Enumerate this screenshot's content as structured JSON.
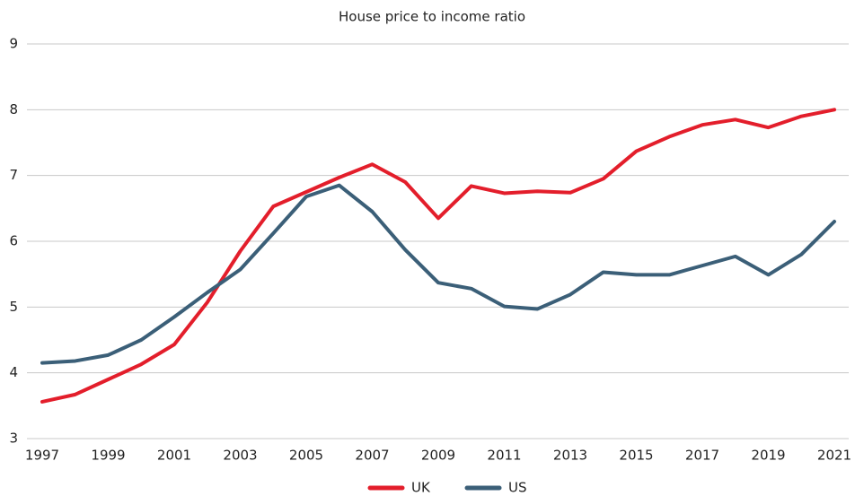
{
  "chart_data": {
    "type": "line",
    "title": "House price to income ratio",
    "x": [
      1997,
      1998,
      1999,
      2000,
      2001,
      2002,
      2003,
      2004,
      2005,
      2006,
      2007,
      2008,
      2009,
      2010,
      2011,
      2012,
      2013,
      2014,
      2015,
      2016,
      2017,
      2018,
      2019,
      2020,
      2021
    ],
    "xlim": [
      1997,
      2021
    ],
    "xticks": [
      1997,
      1999,
      2001,
      2003,
      2005,
      2007,
      2009,
      2011,
      2013,
      2015,
      2017,
      2019,
      2021
    ],
    "ylim": [
      3,
      9
    ],
    "yticks": [
      3,
      4,
      5,
      6,
      7,
      8,
      9
    ],
    "grid": true,
    "legend": "bottom",
    "series": [
      {
        "name": "UK",
        "color": "#e31e2b",
        "values": [
          3.56,
          3.67,
          3.9,
          4.13,
          4.43,
          5.07,
          5.85,
          6.53,
          6.75,
          6.97,
          7.17,
          6.9,
          6.35,
          6.84,
          6.73,
          6.76,
          6.74,
          6.95,
          7.37,
          7.59,
          7.77,
          7.85,
          7.73,
          7.9,
          8.0
        ]
      },
      {
        "name": "US",
        "color": "#3b5f78",
        "values": [
          4.15,
          4.18,
          4.27,
          4.5,
          4.85,
          5.22,
          5.57,
          6.12,
          6.68,
          6.85,
          6.45,
          5.87,
          5.37,
          5.28,
          5.01,
          4.97,
          5.19,
          5.53,
          5.49,
          5.49,
          5.63,
          5.77,
          5.49,
          5.8,
          6.3
        ]
      }
    ]
  }
}
